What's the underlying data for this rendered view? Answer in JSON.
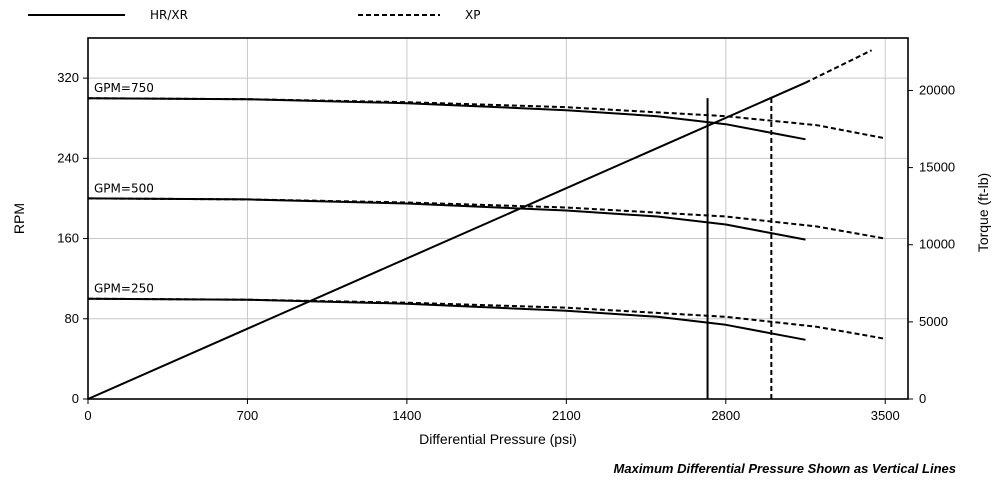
{
  "chart_data": {
    "type": "line",
    "xlabel": "Differential Pressure (psi)",
    "ylabel": "RPM",
    "y2label": "Torque (ft-lb)",
    "xlim": [
      0,
      3600
    ],
    "ylim": [
      0,
      360
    ],
    "y2lim": [
      0,
      23400
    ],
    "xticks": [
      0,
      700,
      1400,
      2100,
      2800,
      3500
    ],
    "yticks": [
      0,
      80,
      160,
      240,
      320
    ],
    "y2ticks": [
      0,
      5000,
      10000,
      15000,
      20000
    ],
    "grid": true,
    "legend": {
      "placement": "top",
      "entries": [
        {
          "label": "HR/XR",
          "style": "solid"
        },
        {
          "label": "XP",
          "style": "dashed"
        }
      ]
    },
    "curve_labels": [
      "GPM=750",
      "GPM=500",
      "GPM=250"
    ],
    "series": [
      {
        "name": "HR/XR",
        "style": "solid",
        "curve": "GPM=750",
        "x": [
          0,
          700,
          1400,
          2100,
          2500,
          2800,
          3150
        ],
        "y": [
          300,
          299,
          295,
          288,
          282,
          274,
          259
        ]
      },
      {
        "name": "XP",
        "style": "dashed",
        "curve": "GPM=750",
        "x": [
          0,
          700,
          1400,
          2100,
          2800,
          3200,
          3500
        ],
        "y": [
          300,
          299,
          296,
          291,
          282,
          273,
          260
        ]
      },
      {
        "name": "HR/XR",
        "style": "solid",
        "curve": "GPM=500",
        "x": [
          0,
          700,
          1400,
          2100,
          2500,
          2800,
          3150
        ],
        "y": [
          200,
          199,
          195,
          188,
          182,
          174,
          159
        ]
      },
      {
        "name": "XP",
        "style": "dashed",
        "curve": "GPM=500",
        "x": [
          0,
          700,
          1400,
          2100,
          2800,
          3200,
          3500
        ],
        "y": [
          200,
          199,
          196,
          191,
          182,
          172,
          160
        ]
      },
      {
        "name": "HR/XR",
        "style": "solid",
        "curve": "GPM=250",
        "x": [
          0,
          700,
          1400,
          2100,
          2500,
          2800,
          3150
        ],
        "y": [
          100,
          99,
          95,
          88,
          82,
          74,
          59
        ]
      },
      {
        "name": "XP",
        "style": "dashed",
        "curve": "GPM=250",
        "x": [
          0,
          700,
          1400,
          2100,
          2800,
          3200,
          3500
        ],
        "y": [
          100,
          99,
          96,
          91,
          82,
          72,
          60
        ]
      },
      {
        "name": "HR/XR",
        "style": "solid",
        "curve": "Torque",
        "axis": "y2",
        "x": [
          0,
          3150
        ],
        "y": [
          0,
          20500
        ]
      },
      {
        "name": "XP",
        "style": "dashed",
        "curve": "Torque",
        "axis": "y2",
        "x": [
          3150,
          3440
        ],
        "y": [
          20500,
          22600
        ]
      }
    ],
    "vertical_lines": [
      {
        "name": "HR/XR",
        "style": "solid",
        "x": 2720,
        "y": [
          0,
          300
        ]
      },
      {
        "name": "XP",
        "style": "dashed",
        "x": 3000,
        "y": [
          0,
          300
        ]
      }
    ],
    "annotation": "Maximum Differential Pressure Shown as Vertical Lines"
  }
}
